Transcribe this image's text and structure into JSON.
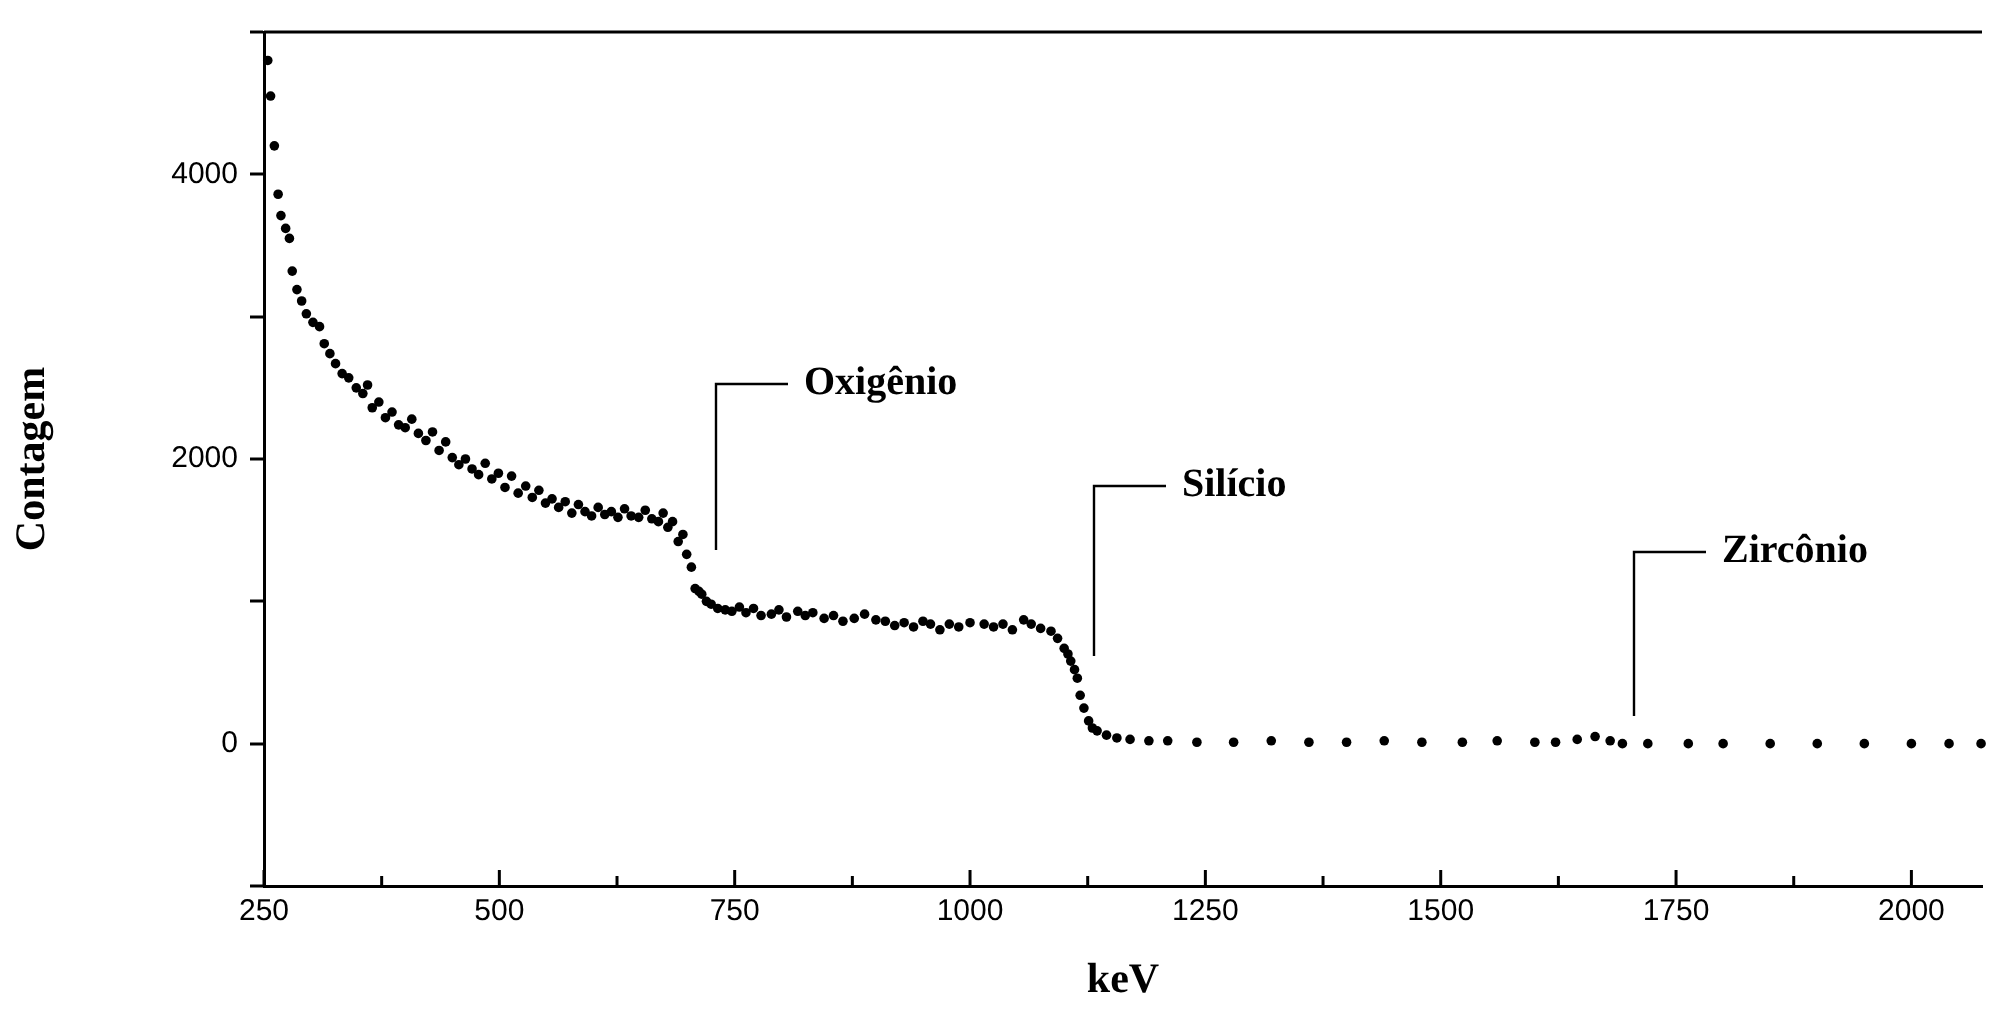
{
  "chart_data": {
    "type": "scatter",
    "xlabel": "keV",
    "ylabel": "Contagem",
    "marker": "circle",
    "grid": false,
    "legend": false,
    "xlim": [
      250,
      2075
    ],
    "ylim": [
      -1000,
      5000
    ],
    "xticks": [
      250,
      {
        "value": 375,
        "label": null
      },
      500,
      {
        "value": 625,
        "label": null
      },
      750,
      {
        "value": 875,
        "label": null
      },
      1000,
      {
        "value": 1125,
        "label": null
      },
      1250,
      {
        "value": 1375,
        "label": null
      },
      1500,
      {
        "value": 1625,
        "label": null
      },
      1750,
      {
        "value": 1875,
        "label": null
      },
      2000
    ],
    "yticks": [
      {
        "value": -1000,
        "label": null
      },
      0,
      {
        "value": 1000,
        "label": null
      },
      2000,
      {
        "value": 3000,
        "label": null
      },
      4000,
      {
        "value": 5000,
        "label": null
      }
    ],
    "annotations": [
      "Oxigênio",
      "Silício",
      "Zircônio"
    ],
    "series": [
      {
        "color": "#000000",
        "x": [
          254,
          257,
          261,
          265,
          268,
          273,
          277,
          280,
          285,
          290,
          295,
          302,
          309,
          314,
          320,
          326,
          333,
          340,
          348,
          355,
          360,
          365,
          372,
          379,
          386,
          393,
          400,
          407,
          414,
          422,
          429,
          436,
          443,
          450,
          457,
          464,
          471,
          478,
          485,
          492,
          499,
          506,
          513,
          520,
          528,
          535,
          542,
          549,
          556,
          563,
          570,
          577,
          584,
          591,
          598,
          605,
          612,
          619,
          626,
          633,
          640,
          648,
          655,
          662,
          669,
          674,
          679,
          684,
          690,
          695,
          699,
          704,
          708,
          712,
          715,
          720,
          725,
          732,
          740,
          747,
          755,
          762,
          770,
          778,
          789,
          797,
          805,
          817,
          825,
          833,
          845,
          855,
          865,
          877,
          888,
          900,
          910,
          920,
          930,
          940,
          950,
          958,
          968,
          978,
          988,
          1000,
          1015,
          1025,
          1035,
          1045,
          1057,
          1065,
          1075,
          1086,
          1093,
          1100,
          1104,
          1107,
          1111,
          1114,
          1117,
          1121,
          1126,
          1130,
          1135,
          1145,
          1156,
          1170,
          1190,
          1210,
          1241,
          1280,
          1320,
          1360,
          1400,
          1440,
          1480,
          1523,
          1560,
          1600,
          1622,
          1645,
          1664,
          1680,
          1693,
          1720,
          1763,
          1800,
          1850,
          1900,
          1950,
          2000,
          2040,
          2074
        ],
        "values": [
          4800,
          4550,
          4200,
          3860,
          3710,
          3620,
          3550,
          3320,
          3190,
          3110,
          3020,
          2960,
          2930,
          2810,
          2740,
          2670,
          2600,
          2570,
          2500,
          2460,
          2520,
          2360,
          2400,
          2290,
          2330,
          2240,
          2220,
          2280,
          2180,
          2130,
          2190,
          2060,
          2120,
          2010,
          1960,
          2000,
          1930,
          1890,
          1970,
          1860,
          1900,
          1800,
          1880,
          1760,
          1810,
          1730,
          1780,
          1690,
          1720,
          1660,
          1700,
          1620,
          1680,
          1630,
          1600,
          1660,
          1610,
          1630,
          1590,
          1650,
          1600,
          1590,
          1640,
          1580,
          1560,
          1620,
          1520,
          1560,
          1420,
          1470,
          1330,
          1240,
          1090,
          1070,
          1050,
          1000,
          980,
          950,
          940,
          930,
          960,
          920,
          950,
          900,
          910,
          940,
          890,
          930,
          900,
          920,
          880,
          900,
          860,
          880,
          910,
          870,
          860,
          830,
          850,
          820,
          860,
          840,
          800,
          840,
          820,
          850,
          840,
          820,
          840,
          800,
          870,
          840,
          810,
          790,
          740,
          670,
          630,
          580,
          520,
          460,
          340,
          250,
          160,
          110,
          90,
          60,
          40,
          30,
          20,
          20,
          10,
          10,
          20,
          10,
          10,
          20,
          10,
          10,
          20,
          10,
          10,
          30,
          50,
          20,
          0,
          0,
          0,
          0,
          0,
          0,
          0,
          0,
          0,
          0
        ]
      }
    ]
  }
}
